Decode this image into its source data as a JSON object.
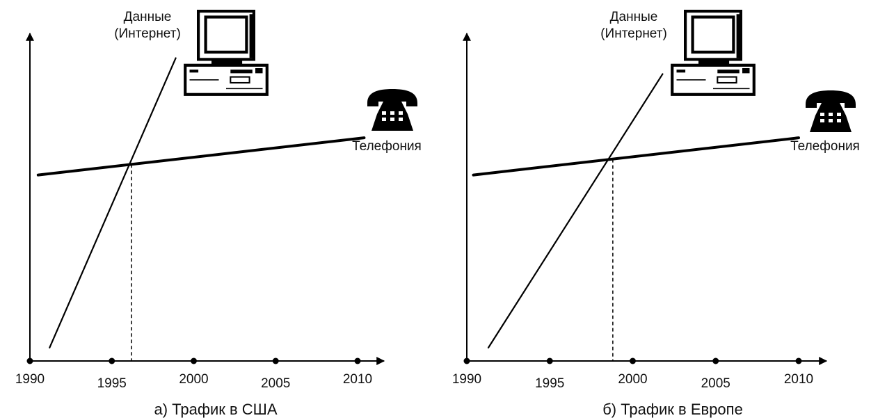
{
  "chart_data": [
    {
      "type": "line",
      "title": "а) Трафик в США",
      "xlabel": "",
      "ylabel": "",
      "x_ticks": [
        1990,
        1995,
        2000,
        2005,
        2010
      ],
      "xlim": [
        1990,
        2010
      ],
      "crossover_year": 1996.2,
      "series": [
        {
          "name": "Данные\n(Интернет)",
          "label_lines": [
            "Данные",
            "(Интернет)"
          ],
          "icon": "computer-icon",
          "x": [
            1991.2,
            1998.9
          ],
          "y": [
            0.05,
            1.14
          ]
        },
        {
          "name": "Телефония",
          "label_lines": [
            "Телефония"
          ],
          "icon": "telephone-icon",
          "x": [
            1990.5,
            2010.4
          ],
          "y": [
            0.7,
            0.84
          ]
        }
      ]
    },
    {
      "type": "line",
      "title": "б) Трафик в Европе",
      "xlabel": "",
      "ylabel": "",
      "x_ticks": [
        1990,
        1995,
        2000,
        2005,
        2010
      ],
      "xlim": [
        1990,
        2010
      ],
      "crossover_year": 1998.8,
      "series": [
        {
          "name": "Данные\n(Интернет)",
          "label_lines": [
            "Данные",
            "(Интернет)"
          ],
          "icon": "computer-icon",
          "x": [
            1991.3,
            2001.8
          ],
          "y": [
            0.05,
            1.08
          ]
        },
        {
          "name": "Телефония",
          "label_lines": [
            "Телефония"
          ],
          "icon": "telephone-icon",
          "x": [
            1990.4,
            2010.0
          ],
          "y": [
            0.7,
            0.84
          ]
        }
      ]
    }
  ]
}
